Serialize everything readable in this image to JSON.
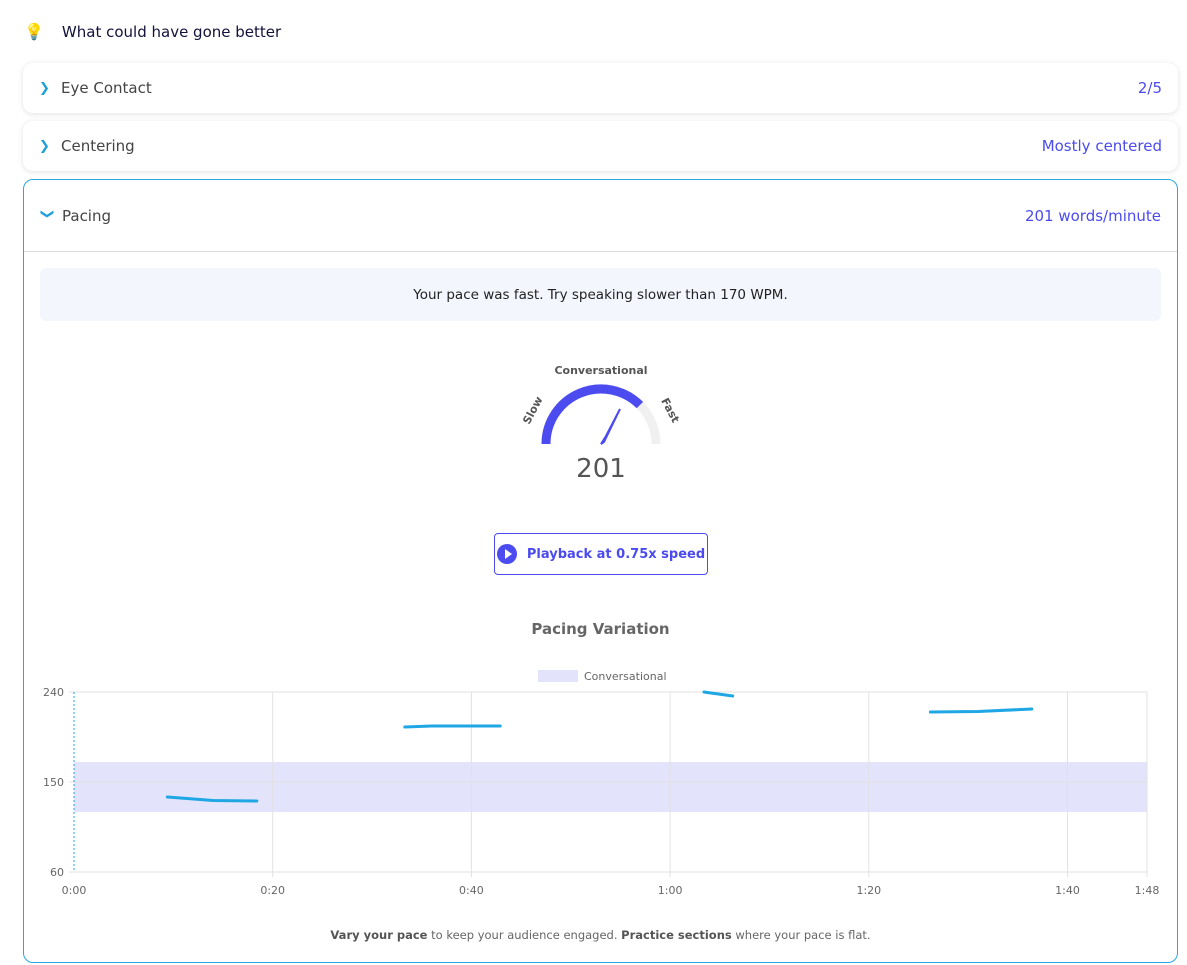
{
  "header": {
    "icon": "lightbulb-icon",
    "title": "What could have gone better"
  },
  "sections": [
    {
      "label": "Eye Contact",
      "value": "2/5",
      "expanded": false
    },
    {
      "label": "Centering",
      "value": "Mostly centered",
      "expanded": false
    },
    {
      "label": "Pacing",
      "value": "201 words/minute",
      "expanded": true
    }
  ],
  "pacing": {
    "message": "Your pace was fast. Try speaking slower than 170 WPM.",
    "gauge": {
      "top_label": "Conversational",
      "left_label": "Slow",
      "right_label": "Fast",
      "value": "201",
      "fill_fraction": 0.75
    },
    "playback_label": "Playback at 0.75x speed",
    "footer": {
      "b1": "Vary your pace",
      "t1": " to keep your audience engaged. ",
      "b2": "Practice sections",
      "t2": " where your pace is flat."
    }
  },
  "chart_data": {
    "type": "line",
    "title": "Pacing Variation",
    "legend": [
      {
        "name": "Conversational",
        "color": "#e3e3fc"
      }
    ],
    "legend_position": "top",
    "xlim": [
      0,
      108
    ],
    "ylim": [
      60,
      240
    ],
    "x_ticks": [
      {
        "v": 0,
        "l": "0:00"
      },
      {
        "v": 20,
        "l": "0:20"
      },
      {
        "v": 40,
        "l": "0:40"
      },
      {
        "v": 60,
        "l": "1:00"
      },
      {
        "v": 80,
        "l": "1:20"
      },
      {
        "v": 100,
        "l": "1:40"
      },
      {
        "v": 108,
        "l": "1:48"
      }
    ],
    "y_ticks": [
      240,
      150,
      60
    ],
    "band": [
      120,
      170
    ],
    "line_color": "#1ea7e4",
    "segments": [
      [
        [
          9.4,
          135
        ],
        [
          14,
          131.5
        ],
        [
          18.4,
          131
        ]
      ],
      [
        [
          33.3,
          205
        ],
        [
          36,
          206
        ],
        [
          42.9,
          206
        ]
      ],
      [
        [
          63.4,
          240
        ],
        [
          66.3,
          236
        ]
      ],
      [
        [
          86.2,
          220
        ],
        [
          91,
          220.5
        ],
        [
          96.4,
          223
        ]
      ]
    ],
    "grid": true
  }
}
